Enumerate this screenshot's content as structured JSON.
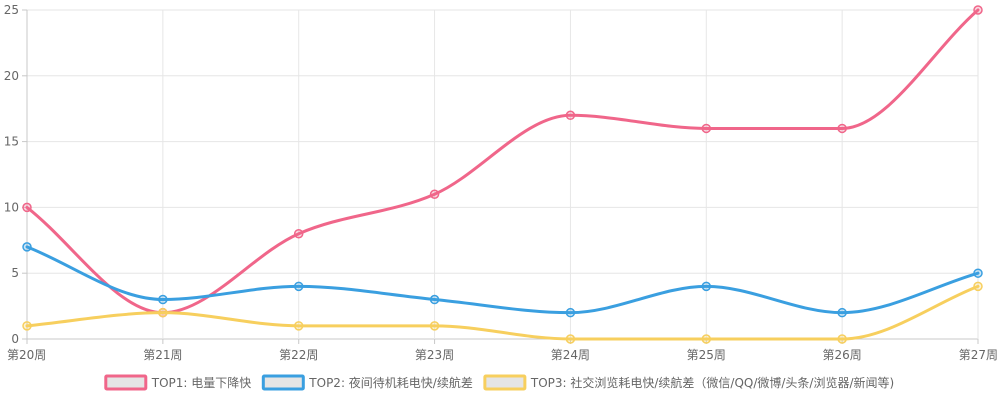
{
  "chart_data": {
    "type": "line",
    "title": "",
    "xlabel": "",
    "ylabel": "",
    "categories": [
      "第20周",
      "第21周",
      "第22周",
      "第23周",
      "第24周",
      "第25周",
      "第26周",
      "第27周"
    ],
    "ylim": [
      0,
      25
    ],
    "yticks": [
      0,
      5,
      10,
      15,
      20,
      25
    ],
    "grid": true,
    "legend_position": "bottom",
    "series": [
      {
        "name": "TOP1: 电量下降快",
        "color": "#f0668a",
        "values": [
          10,
          2,
          8,
          11,
          17,
          16,
          16,
          25
        ]
      },
      {
        "name": "TOP2: 夜间待机耗电快/续航差",
        "color": "#3a9fe0",
        "values": [
          7,
          3,
          4,
          3,
          2,
          4,
          2,
          5
        ]
      },
      {
        "name": "TOP3: 社交浏览耗电快/续航差（微信/QQ/微博/头条/浏览器/新闻等)",
        "color": "#f7cf5e",
        "values": [
          1,
          2,
          1,
          1,
          0,
          0,
          0,
          4
        ]
      }
    ]
  }
}
